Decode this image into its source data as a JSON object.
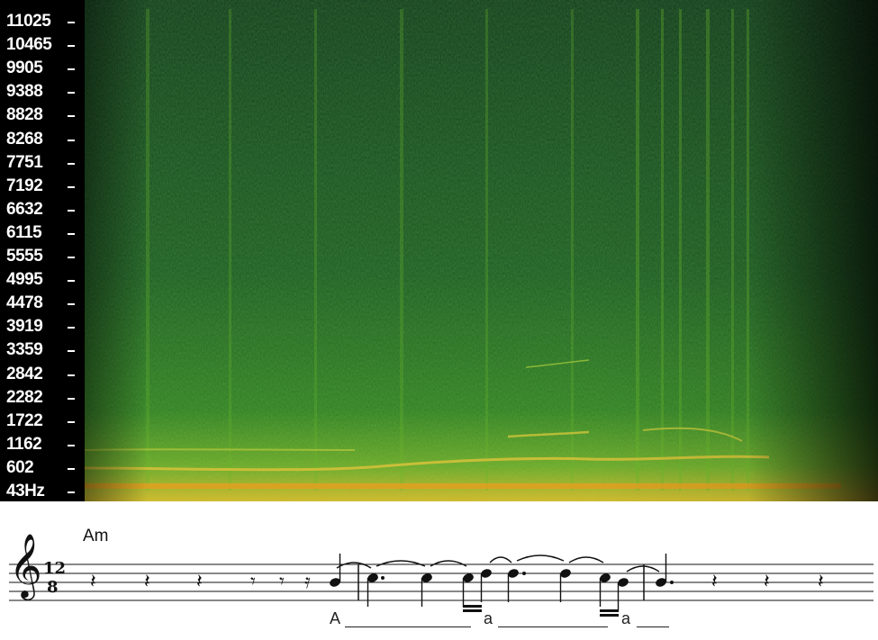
{
  "spectrogram": {
    "frequency_labels": [
      "11025",
      "10465",
      "9905",
      "9388",
      "8828",
      "8268",
      "7751",
      "7192",
      "6632",
      "6115",
      "5555",
      "4995",
      "4478",
      "3919",
      "3359",
      "2842",
      "2282",
      "1722",
      "1162",
      "602",
      "43Hz"
    ],
    "colors": {
      "axis_bg": "#000000",
      "dark": "#0c2a14",
      "mid": "#1f6a1e",
      "bright": "#5fae22",
      "hot": "#e6c020"
    }
  },
  "score": {
    "chord": "Am",
    "time_signature_top": "12",
    "time_signature_bottom": "8",
    "lyrics": [
      "A",
      "a",
      "a"
    ]
  }
}
